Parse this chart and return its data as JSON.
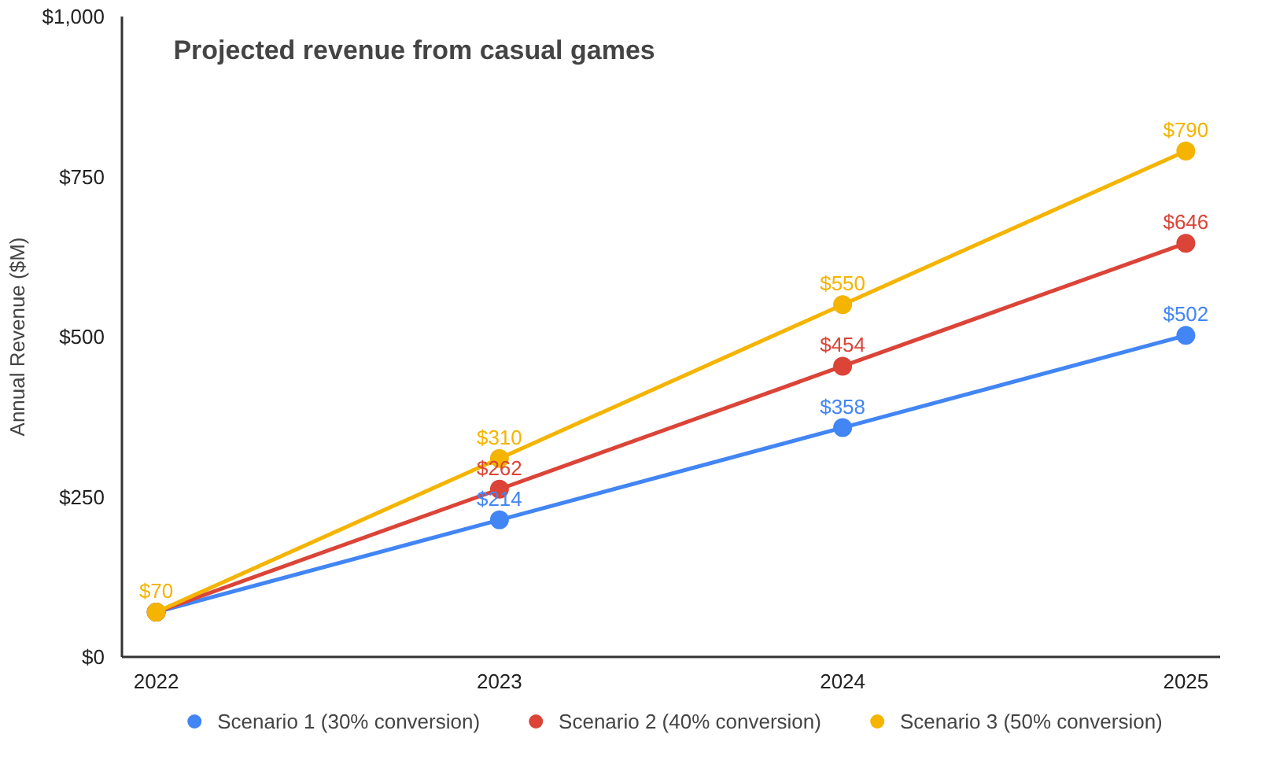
{
  "chart_data": {
    "type": "line",
    "title": "Projected revenue from casual games",
    "ylabel": "Annual Revenue ($M)",
    "categories": [
      "2022",
      "2023",
      "2024",
      "2025"
    ],
    "series": [
      {
        "name": "Scenario 1 (30% conversion)",
        "color": "#4285f4",
        "values": [
          70,
          214,
          358,
          502
        ],
        "value_labels": [
          null,
          "$214",
          "$358",
          "$502"
        ]
      },
      {
        "name": "Scenario 2 (40% conversion)",
        "color": "#db4437",
        "values": [
          70,
          262,
          454,
          646
        ],
        "value_labels": [
          null,
          "$262",
          "$454",
          "$646"
        ]
      },
      {
        "name": "Scenario 3 (50% conversion)",
        "color": "#f4b400",
        "values": [
          70,
          310,
          550,
          790
        ],
        "value_labels": [
          "$70",
          "$310",
          "$550",
          "$790"
        ]
      }
    ],
    "ylim": [
      0,
      1000
    ],
    "yticks": [
      {
        "value": 0,
        "label": "$0"
      },
      {
        "value": 250,
        "label": "$250"
      },
      {
        "value": 500,
        "label": "$500"
      },
      {
        "value": 750,
        "label": "$750"
      },
      {
        "value": 1000,
        "label": "$1,000"
      }
    ],
    "marker": "circle",
    "line_style": "solid",
    "legend": "bottom",
    "grid": false
  }
}
